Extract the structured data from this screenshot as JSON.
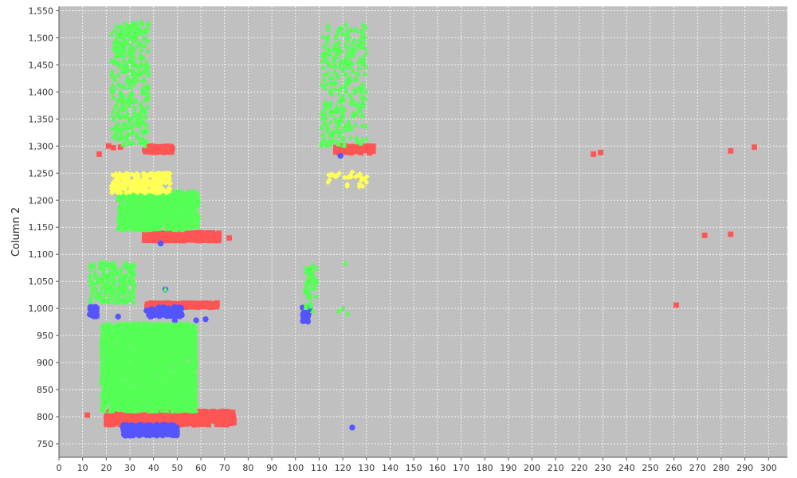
{
  "chart_data": {
    "type": "scatter",
    "title": "",
    "xlabel": "",
    "ylabel": "Column 2",
    "xlim": [
      0,
      308
    ],
    "ylim": [
      725,
      1558
    ],
    "x_ticks": [
      0,
      10,
      20,
      30,
      40,
      50,
      60,
      70,
      80,
      90,
      100,
      110,
      120,
      130,
      140,
      150,
      160,
      170,
      180,
      190,
      200,
      210,
      220,
      230,
      240,
      250,
      260,
      270,
      280,
      290,
      300
    ],
    "x_tick_labels": [
      "0",
      "10",
      "20",
      "30",
      "40",
      "50",
      "60",
      "70",
      "80",
      "90",
      "100",
      "110",
      "120",
      "130",
      "140",
      "150",
      "160",
      "170",
      "180",
      "190",
      "200",
      "210",
      "220",
      "230",
      "240",
      "250",
      "260",
      "270",
      "280",
      "290",
      "300"
    ],
    "y_ticks": [
      750,
      800,
      850,
      900,
      950,
      1000,
      1050,
      1100,
      1150,
      1200,
      1250,
      1300,
      1350,
      1400,
      1450,
      1500,
      1550
    ],
    "y_tick_labels": [
      "750",
      "800",
      "850",
      "900",
      "950",
      "1,000",
      "1,050",
      "1,100",
      "1,150",
      "1,200",
      "1,250",
      "1,300",
      "1,350",
      "1,400",
      "1,450",
      "1,500",
      "1,550"
    ],
    "grid": true,
    "legend": false,
    "plot_background": "#c0c0c0",
    "grid_color": "#ffffff",
    "series": [
      {
        "marker": "square",
        "color": "#ff5555",
        "points": [
          [
            12,
            803
          ],
          [
            17,
            1285
          ],
          [
            21,
            1300
          ],
          [
            23,
            1297
          ],
          [
            26,
            1298
          ],
          [
            38,
            1295
          ],
          [
            45,
            1293
          ],
          [
            72,
            1130
          ],
          [
            226,
            1285
          ],
          [
            229,
            1288
          ],
          [
            261,
            1006
          ],
          [
            273,
            1135
          ],
          [
            284,
            1291
          ],
          [
            284,
            1137
          ],
          [
            294,
            1298
          ],
          [
            119,
            1292
          ],
          [
            126,
            1295
          ],
          [
            131,
            1300
          ]
        ],
        "clusters": [
          {
            "x_range": [
              20,
              74
            ],
            "y_range": [
              785,
              810
            ],
            "count": 700
          },
          {
            "x_range": [
              36,
              68
            ],
            "y_range": [
              1125,
              1140
            ],
            "count": 400
          },
          {
            "x_range": [
              36,
              48
            ],
            "y_range": [
              1288,
              1300
            ],
            "count": 90
          },
          {
            "x_range": [
              37,
              67
            ],
            "y_range": [
              1002,
              1010
            ],
            "count": 260
          },
          {
            "x_range": [
              117,
              133
            ],
            "y_range": [
              1287,
              1300
            ],
            "count": 80
          }
        ]
      },
      {
        "marker": "circle",
        "color": "#5555ff",
        "points": [
          [
            43,
            1120
          ],
          [
            119,
            1282
          ],
          [
            124,
            780
          ],
          [
            45,
            1035
          ],
          [
            62,
            980
          ],
          [
            58,
            978
          ],
          [
            49,
            977
          ],
          [
            37,
            996
          ],
          [
            43,
            997
          ],
          [
            14,
            1000
          ],
          [
            25,
            985
          ],
          [
            104,
            980
          ]
        ],
        "clusters": [
          {
            "x_range": [
              27,
              50
            ],
            "y_range": [
              765,
              785
            ],
            "count": 250
          },
          {
            "x_range": [
              13,
              16
            ],
            "y_range": [
              985,
              1003
            ],
            "count": 40
          },
          {
            "x_range": [
              38,
              52
            ],
            "y_range": [
              985,
              1003
            ],
            "count": 80
          },
          {
            "x_range": [
              103,
              106
            ],
            "y_range": [
              975,
              1003
            ],
            "count": 30
          }
        ]
      },
      {
        "marker": "triangle",
        "color": "#55ff55",
        "points": [
          [
            45,
            1035
          ],
          [
            121,
            1083
          ],
          [
            120,
            1000
          ],
          [
            122,
            990
          ],
          [
            118,
            995
          ]
        ],
        "clusters": [
          {
            "x_range": [
              18,
              58
            ],
            "y_range": [
              810,
              972
            ],
            "count": 2600
          },
          {
            "x_range": [
              25,
              59
            ],
            "y_range": [
              1145,
              1217
            ],
            "count": 1000
          },
          {
            "x_range": [
              22,
              38
            ],
            "y_range": [
              1300,
              1530
            ],
            "count": 350
          },
          {
            "x_range": [
              111,
              130
            ],
            "y_range": [
              1300,
              1525
            ],
            "count": 280
          },
          {
            "x_range": [
              13,
              32
            ],
            "y_range": [
              1010,
              1085
            ],
            "count": 200
          },
          {
            "x_range": [
              104,
              109
            ],
            "y_range": [
              990,
              1080
            ],
            "count": 50
          }
        ]
      },
      {
        "marker": "diamond",
        "color": "#ffff55",
        "points": [
          [
            117,
            1243
          ],
          [
            124,
            1252
          ],
          [
            127,
            1225
          ],
          [
            130,
            1233
          ]
        ],
        "clusters": [
          {
            "x_range": [
              22,
              47
            ],
            "y_range": [
              1213,
              1250
            ],
            "count": 300
          },
          {
            "x_range": [
              113,
              131
            ],
            "y_range": [
              1220,
              1250
            ],
            "count": 28
          }
        ]
      }
    ]
  }
}
